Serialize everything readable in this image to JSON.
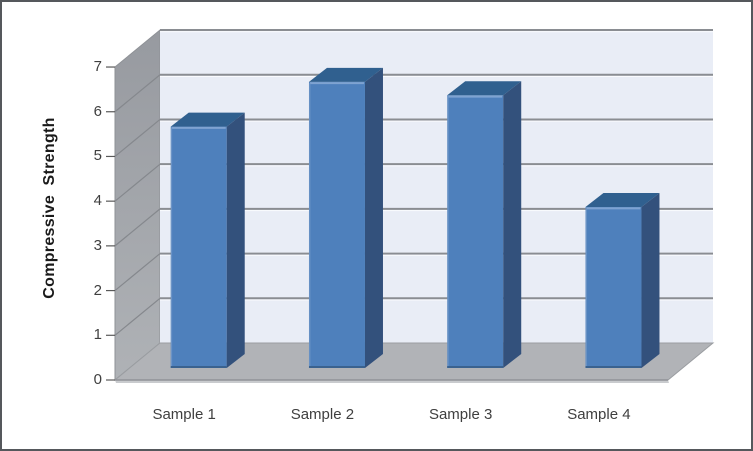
{
  "chart_data": {
    "type": "bar",
    "subtype": "3d-column",
    "title": "",
    "xlabel": "",
    "ylabel": "Compressive  Strength",
    "categories": [
      "Sample 1",
      "Sample 2",
      "Sample 3",
      "Sample 4"
    ],
    "values": [
      5.4,
      6.4,
      6.1,
      3.6
    ],
    "ylim": [
      0,
      7
    ],
    "yticks": [
      0,
      1,
      2,
      3,
      4,
      5,
      6,
      7
    ],
    "grid": "horizontal",
    "legend": "none"
  },
  "colors": {
    "bar_front": "#4E80BC",
    "bar_top": "#30608F",
    "bar_side": "#33517C",
    "bar_top_highlight": "#7FA3D1",
    "bar_bottom_shade": "#3A628F",
    "back_wall": "#E9EDF6",
    "side_wall_dark": "#979AA0",
    "side_wall_light": "#AFB2B6",
    "floor": "#B1B3B7",
    "floor_edge": "#8F9297",
    "gridline": "#8A8D92",
    "gridline_highlight": "#FAFBFE",
    "wall_slope_line": "#85888D",
    "tick_mark": "#595959",
    "tick_text": "#3F3F3F",
    "frame_border": "#55585C"
  }
}
